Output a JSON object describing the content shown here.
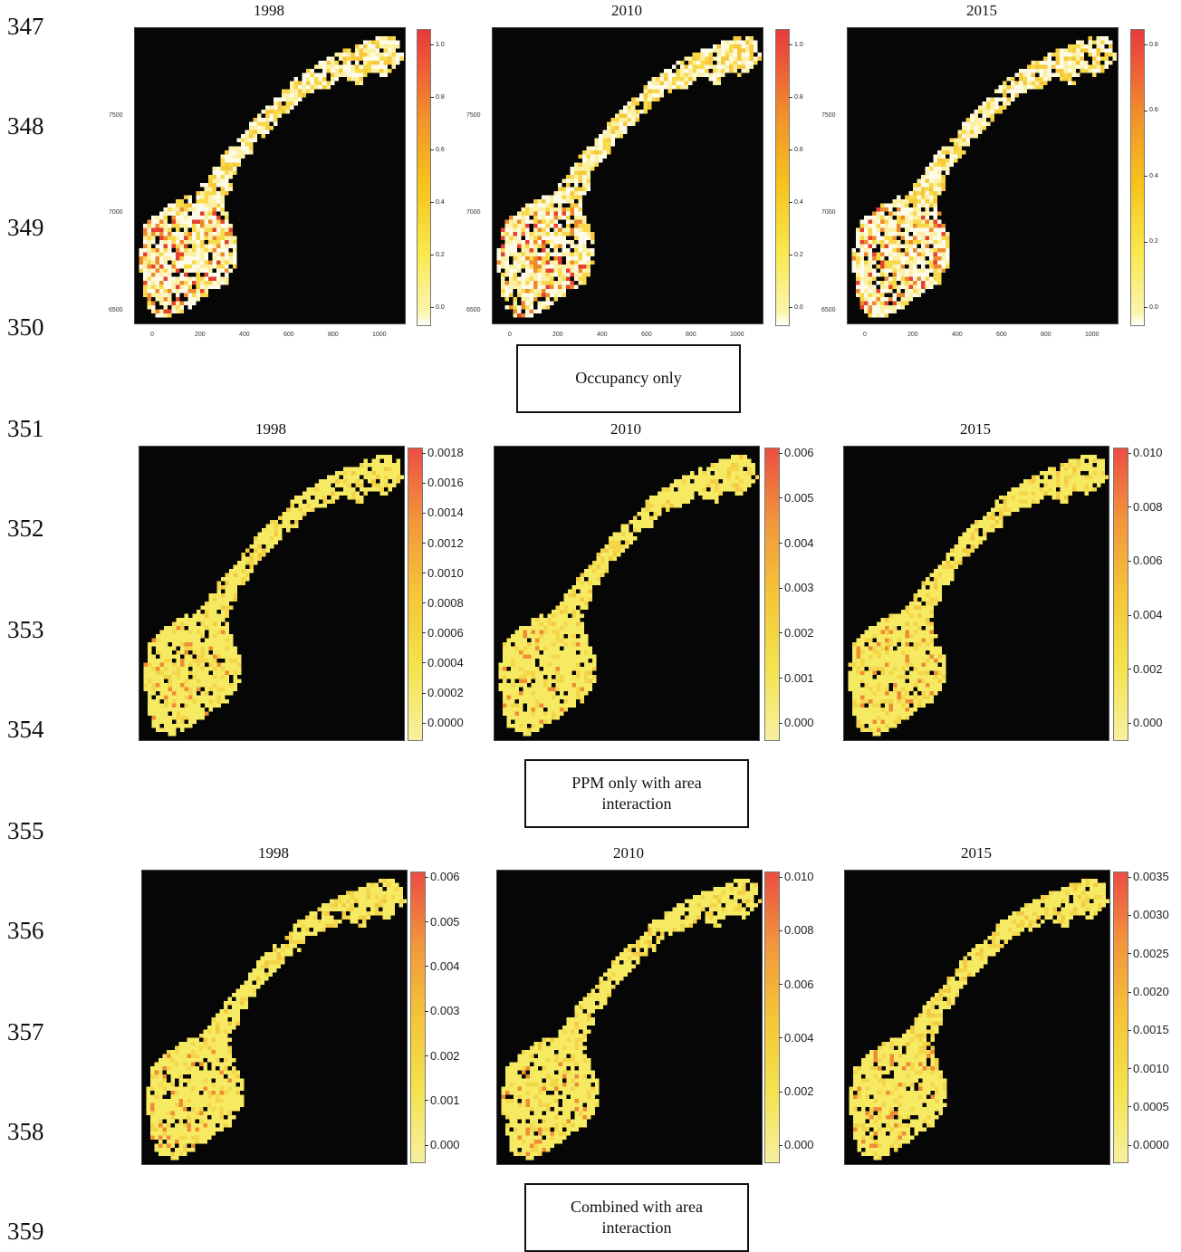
{
  "line_numbers": [
    "347",
    "348",
    "349",
    "350",
    "351",
    "352",
    "353",
    "354",
    "355",
    "356",
    "357",
    "358",
    "359"
  ],
  "rows": [
    {
      "caption": "Occupancy only",
      "style": "occ",
      "panels": [
        {
          "title": "1998",
          "ticks": [
            "1.0",
            "0.8",
            "0.6",
            "0.4",
            "0.2",
            "0.0"
          ]
        },
        {
          "title": "2010",
          "ticks": [
            "1.0",
            "0.8",
            "0.6",
            "0.4",
            "0.2",
            "0.0"
          ]
        },
        {
          "title": "2015",
          "ticks": [
            "0.8",
            "0.6",
            "0.4",
            "0.2",
            "0.0"
          ]
        }
      ],
      "y_axis": [
        "7500",
        "7000",
        "6500"
      ],
      "x_axis": [
        "0",
        "200",
        "400",
        "600",
        "800",
        "1000"
      ]
    },
    {
      "caption": "PPM only with area interaction",
      "style": "ppm",
      "panels": [
        {
          "title": "1998",
          "ticks": [
            "0.0018",
            "0.0016",
            "0.0014",
            "0.0012",
            "0.0010",
            "0.0008",
            "0.0006",
            "0.0004",
            "0.0002",
            "0.0000"
          ]
        },
        {
          "title": "2010",
          "ticks": [
            "0.006",
            "0.005",
            "0.004",
            "0.003",
            "0.002",
            "0.001",
            "0.000"
          ]
        },
        {
          "title": "2015",
          "ticks": [
            "0.010",
            "0.008",
            "0.006",
            "0.004",
            "0.002",
            "0.000"
          ]
        }
      ]
    },
    {
      "caption": "Combined with area interaction",
      "style": "ppm",
      "panels": [
        {
          "title": "1998",
          "ticks": [
            "0.006",
            "0.005",
            "0.004",
            "0.003",
            "0.002",
            "0.001",
            "0.000"
          ]
        },
        {
          "title": "2010",
          "ticks": [
            "0.010",
            "0.008",
            "0.006",
            "0.004",
            "0.002",
            "0.000"
          ]
        },
        {
          "title": "2015",
          "ticks": [
            "0.0035",
            "0.0030",
            "0.0025",
            "0.0020",
            "0.0015",
            "0.0010",
            "0.0005",
            "0.0000"
          ]
        }
      ]
    }
  ],
  "colors": {
    "background": "#060606",
    "low": "#fbf3a8",
    "mid": "#f4c537",
    "high": "#e83a3a"
  }
}
